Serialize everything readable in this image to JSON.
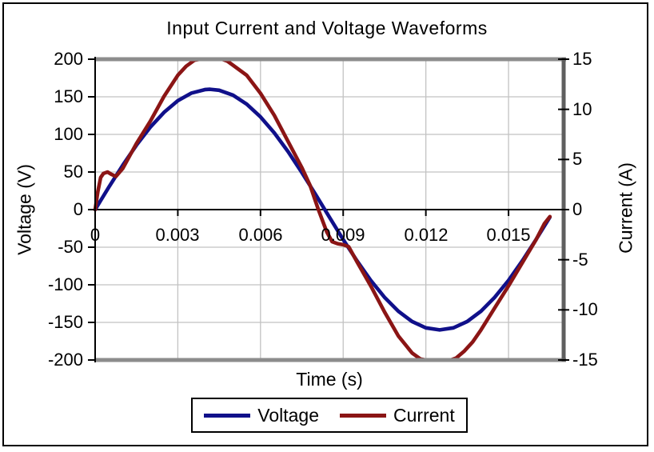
{
  "chart": {
    "title": "Input Current and Voltage Waveforms",
    "x_axis": {
      "title": "Time (s)",
      "tick_labels": [
        "0",
        "0.003",
        "0.006",
        "0.009",
        "0.012",
        "0.015"
      ],
      "tick_values": [
        0,
        0.003,
        0.006,
        0.009,
        0.012,
        0.015
      ],
      "range": [
        0,
        0.017
      ]
    },
    "left_axis": {
      "title": "Voltage (V)",
      "tick_labels": [
        "200",
        "150",
        "100",
        "50",
        "0",
        "-50",
        "-100",
        "-150",
        "-200"
      ],
      "tick_values": [
        200,
        150,
        100,
        50,
        0,
        -50,
        -100,
        -150,
        -200
      ],
      "range": [
        -200,
        200
      ]
    },
    "right_axis": {
      "title": "Current (A)",
      "tick_labels": [
        "15",
        "10",
        "5",
        "0",
        "-5",
        "-10",
        "-15"
      ],
      "tick_values": [
        15,
        10,
        5,
        0,
        -5,
        -10,
        -15
      ],
      "range": [
        -15,
        15
      ]
    },
    "legend": {
      "position": "bottom",
      "items": [
        {
          "label": "Voltage",
          "color": "#10108A"
        },
        {
          "label": "Current",
          "color": "#8B1515"
        }
      ]
    }
  },
  "chart_data": {
    "type": "line",
    "title": "Input Current and Voltage Waveforms",
    "xlabel": "Time (s)",
    "ylabel_left": "Voltage (V)",
    "ylabel_right": "Current (A)",
    "x_range": [
      0,
      0.017
    ],
    "left_range": [
      -200,
      200
    ],
    "right_range": [
      -15,
      15
    ],
    "grid": true,
    "grid_color": "#c2c2c2",
    "legend_position": "bottom",
    "frequency_hz": 60,
    "series": [
      {
        "name": "Voltage",
        "axis": "left",
        "unit": "V",
        "color": "#10108A",
        "peak": 160,
        "points": [
          [
            0,
            0
          ],
          [
            0.0005,
            30
          ],
          [
            0.001,
            58.9
          ],
          [
            0.0015,
            85.7
          ],
          [
            0.002,
            109.5
          ],
          [
            0.0025,
            129.4
          ],
          [
            0.003,
            144.8
          ],
          [
            0.0035,
            155
          ],
          [
            0.004,
            159.7
          ],
          [
            0.00417,
            160
          ],
          [
            0.0045,
            158.7
          ],
          [
            0.005,
            152.2
          ],
          [
            0.0055,
            140.2
          ],
          [
            0.006,
            123.3
          ],
          [
            0.0065,
            102
          ],
          [
            0.007,
            77.1
          ],
          [
            0.0075,
            49.4
          ],
          [
            0.008,
            20
          ],
          [
            0.0085,
            -10
          ],
          [
            0.009,
            -39.8
          ],
          [
            0.0095,
            -68.1
          ],
          [
            0.01,
            -94
          ],
          [
            0.0105,
            -116.6
          ],
          [
            0.011,
            -135.1
          ],
          [
            0.0115,
            -148.8
          ],
          [
            0.012,
            -157.2
          ],
          [
            0.0125,
            -160
          ],
          [
            0.013,
            -157.2
          ],
          [
            0.0135,
            -148.8
          ],
          [
            0.014,
            -135.1
          ],
          [
            0.0145,
            -116.6
          ],
          [
            0.015,
            -94
          ],
          [
            0.0155,
            -68.1
          ],
          [
            0.016,
            -39.8
          ],
          [
            0.0165,
            -10
          ]
        ]
      },
      {
        "name": "Current",
        "axis": "right",
        "unit": "A",
        "color": "#8B1515",
        "peak": 15,
        "points": [
          [
            0,
            0
          ],
          [
            0.0001,
            1.8
          ],
          [
            0.0002,
            3.2
          ],
          [
            0.0003,
            3.6
          ],
          [
            0.00045,
            3.75
          ],
          [
            0.0006,
            3.5
          ],
          [
            0.00075,
            3.3
          ],
          [
            0.001,
            4.1
          ],
          [
            0.0015,
            6.6
          ],
          [
            0.002,
            8.8
          ],
          [
            0.0025,
            11.3
          ],
          [
            0.003,
            13.4
          ],
          [
            0.0033,
            14.3
          ],
          [
            0.0036,
            14.9
          ],
          [
            0.0038,
            15
          ],
          [
            0.0046,
            15
          ],
          [
            0.0048,
            14.8
          ],
          [
            0.005,
            14.4
          ],
          [
            0.0055,
            13.4
          ],
          [
            0.006,
            11.6
          ],
          [
            0.0065,
            9.4
          ],
          [
            0.007,
            6.8
          ],
          [
            0.0075,
            4.2
          ],
          [
            0.0078,
            2.4
          ],
          [
            0.0081,
            0
          ],
          [
            0.0084,
            -2.2
          ],
          [
            0.0086,
            -3.2
          ],
          [
            0.0088,
            -3.4
          ],
          [
            0.009,
            -3.5
          ],
          [
            0.0092,
            -3.7
          ],
          [
            0.0095,
            -5.2
          ],
          [
            0.01,
            -7.6
          ],
          [
            0.0105,
            -10.2
          ],
          [
            0.011,
            -12.6
          ],
          [
            0.0115,
            -14.3
          ],
          [
            0.0118,
            -14.9
          ],
          [
            0.012,
            -15
          ],
          [
            0.0129,
            -15
          ],
          [
            0.0131,
            -14.8
          ],
          [
            0.0134,
            -14.1
          ],
          [
            0.0137,
            -13.2
          ],
          [
            0.014,
            -12
          ],
          [
            0.0145,
            -9.8
          ],
          [
            0.015,
            -7.6
          ],
          [
            0.0155,
            -5.3
          ],
          [
            0.016,
            -3
          ],
          [
            0.0163,
            -1.4
          ],
          [
            0.0165,
            -0.7
          ]
        ]
      }
    ]
  }
}
